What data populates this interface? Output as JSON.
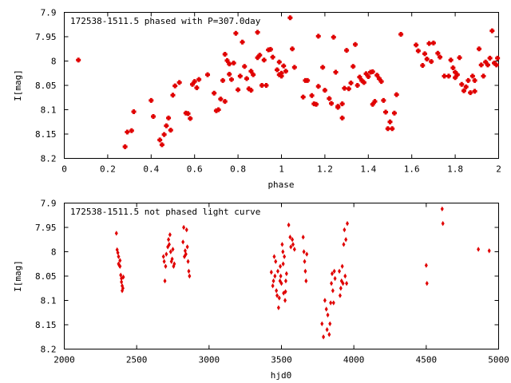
{
  "chart_data": [
    {
      "type": "scatter",
      "title": "172538-1511.5 phased with P=307.0day",
      "xlabel": "phase",
      "ylabel": "I[mag]",
      "xlim": [
        0,
        2
      ],
      "ylim": [
        8.2,
        7.9
      ],
      "y_inverted": true,
      "grid": false,
      "xticks": [
        0,
        0.2,
        0.4,
        0.6,
        0.8,
        1,
        1.2,
        1.4,
        1.6,
        1.8,
        2
      ],
      "xtick_labels": [
        "0",
        "0.2",
        "0.4",
        "0.6",
        "0.8",
        "1",
        "1.2",
        "1.4",
        "1.6",
        "1.8",
        "2"
      ],
      "yticks": [
        7.9,
        7.95,
        8.0,
        8.05,
        8.1,
        8.15,
        8.2
      ],
      "ytick_labels": [
        "7.9",
        "7.95",
        "8",
        "8.05",
        "8.1",
        "8.15",
        "8.2"
      ],
      "color": "#e00000",
      "marker": "cross",
      "points": [
        [
          0.065,
          7.998
        ],
        [
          0.28,
          8.176
        ],
        [
          0.29,
          8.146
        ],
        [
          0.31,
          8.143
        ],
        [
          0.32,
          8.104
        ],
        [
          0.4,
          8.081
        ],
        [
          0.41,
          8.114
        ],
        [
          0.44,
          8.162
        ],
        [
          0.45,
          8.172
        ],
        [
          0.46,
          8.151
        ],
        [
          0.47,
          8.133
        ],
        [
          0.48,
          8.117
        ],
        [
          0.49,
          8.142
        ],
        [
          0.5,
          8.07
        ],
        [
          0.51,
          8.051
        ],
        [
          0.53,
          8.044
        ],
        [
          0.56,
          8.107
        ],
        [
          0.57,
          8.108
        ],
        [
          0.58,
          8.118
        ],
        [
          0.59,
          8.048
        ],
        [
          0.6,
          8.042
        ],
        [
          0.61,
          8.055
        ],
        [
          0.62,
          8.038
        ],
        [
          0.66,
          8.028
        ],
        [
          0.69,
          8.066
        ],
        [
          0.7,
          8.102
        ],
        [
          0.71,
          8.1
        ],
        [
          0.72,
          8.078
        ],
        [
          0.73,
          8.04
        ],
        [
          0.74,
          8.083
        ],
        [
          0.74,
          7.986
        ],
        [
          0.75,
          7.999
        ],
        [
          0.76,
          8.006
        ],
        [
          0.76,
          8.027
        ],
        [
          0.77,
          8.038
        ],
        [
          0.78,
          8.004
        ],
        [
          0.79,
          7.943
        ],
        [
          0.8,
          8.059
        ],
        [
          0.81,
          8.031
        ],
        [
          0.82,
          7.961
        ],
        [
          0.83,
          8.011
        ],
        [
          0.84,
          8.036
        ],
        [
          0.85,
          8.057
        ],
        [
          0.86,
          8.06
        ],
        [
          0.86,
          8.021
        ],
        [
          0.87,
          8.028
        ],
        [
          0.89,
          7.941
        ],
        [
          0.89,
          7.993
        ],
        [
          0.9,
          7.988
        ],
        [
          0.91,
          8.05
        ],
        [
          0.92,
          7.998
        ],
        [
          0.93,
          8.05
        ],
        [
          0.94,
          7.977
        ],
        [
          0.95,
          7.976
        ],
        [
          0.96,
          7.992
        ],
        [
          0.98,
          8.018
        ],
        [
          0.99,
          8.002
        ],
        [
          0.99,
          8.028
        ],
        [
          1.0,
          8.031
        ],
        [
          1.0,
          8.025
        ],
        [
          1.01,
          8.01
        ],
        [
          1.02,
          8.021
        ],
        [
          1.04,
          7.911
        ],
        [
          1.05,
          7.975
        ],
        [
          1.06,
          8.013
        ],
        [
          1.1,
          8.074
        ],
        [
          1.11,
          8.04
        ],
        [
          1.12,
          8.04
        ],
        [
          1.14,
          8.071
        ],
        [
          1.15,
          8.088
        ],
        [
          1.16,
          8.089
        ],
        [
          1.17,
          7.949
        ],
        [
          1.17,
          8.052
        ],
        [
          1.19,
          8.013
        ],
        [
          1.2,
          8.06
        ],
        [
          1.22,
          8.077
        ],
        [
          1.23,
          8.087
        ],
        [
          1.24,
          7.951
        ],
        [
          1.25,
          8.023
        ],
        [
          1.26,
          8.095
        ],
        [
          1.26,
          8.093
        ],
        [
          1.28,
          8.117
        ],
        [
          1.28,
          8.088
        ],
        [
          1.29,
          8.056
        ],
        [
          1.3,
          7.978
        ],
        [
          1.31,
          8.057
        ],
        [
          1.32,
          8.045
        ],
        [
          1.33,
          8.011
        ],
        [
          1.34,
          7.966
        ],
        [
          1.35,
          8.05
        ],
        [
          1.36,
          8.033
        ],
        [
          1.37,
          8.04
        ],
        [
          1.38,
          8.044
        ],
        [
          1.39,
          8.026
        ],
        [
          1.4,
          8.032
        ],
        [
          1.41,
          8.023
        ],
        [
          1.42,
          8.022
        ],
        [
          1.42,
          8.089
        ],
        [
          1.43,
          8.083
        ],
        [
          1.44,
          8.029
        ],
        [
          1.45,
          8.036
        ],
        [
          1.46,
          8.042
        ],
        [
          1.47,
          8.081
        ],
        [
          1.48,
          8.105
        ],
        [
          1.49,
          8.139
        ],
        [
          1.5,
          8.125
        ],
        [
          1.51,
          8.139
        ],
        [
          1.52,
          8.107
        ],
        [
          1.53,
          8.069
        ],
        [
          1.55,
          7.945
        ],
        [
          1.62,
          7.967
        ],
        [
          1.63,
          7.979
        ],
        [
          1.65,
          8.009
        ],
        [
          1.66,
          7.985
        ],
        [
          1.67,
          7.996
        ],
        [
          1.68,
          7.964
        ],
        [
          1.69,
          8.001
        ],
        [
          1.7,
          7.963
        ],
        [
          1.72,
          7.984
        ],
        [
          1.73,
          7.992
        ],
        [
          1.75,
          8.031
        ],
        [
          1.77,
          8.031
        ],
        [
          1.78,
          7.998
        ],
        [
          1.79,
          8.014
        ],
        [
          1.8,
          8.023
        ],
        [
          1.8,
          8.034
        ],
        [
          1.81,
          8.028
        ],
        [
          1.82,
          7.993
        ],
        [
          1.83,
          8.048
        ],
        [
          1.84,
          8.061
        ],
        [
          1.85,
          8.053
        ],
        [
          1.86,
          8.04
        ],
        [
          1.87,
          8.065
        ],
        [
          1.88,
          8.031
        ],
        [
          1.89,
          8.062
        ],
        [
          1.89,
          8.04
        ],
        [
          1.91,
          7.975
        ],
        [
          1.92,
          8.008
        ],
        [
          1.93,
          8.031
        ],
        [
          1.94,
          8.002
        ],
        [
          1.95,
          8.008
        ],
        [
          1.96,
          7.994
        ],
        [
          1.97,
          7.938
        ],
        [
          1.98,
          8.004
        ],
        [
          1.99,
          8.008
        ],
        [
          1.995,
          7.994
        ]
      ]
    },
    {
      "type": "scatter",
      "title": "172538-1511.5 not phased light curve",
      "xlabel": "hjd0",
      "ylabel": "I[mag]",
      "xlim": [
        2000,
        5000
      ],
      "ylim": [
        8.2,
        7.9
      ],
      "y_inverted": true,
      "grid": false,
      "xticks": [
        2000,
        2500,
        3000,
        3500,
        4000,
        4500,
        5000
      ],
      "xtick_labels": [
        "2000",
        "2500",
        "3000",
        "3500",
        "4000",
        "4500",
        "5000"
      ],
      "yticks": [
        7.9,
        7.95,
        8.0,
        8.05,
        8.1,
        8.15,
        8.2
      ],
      "ytick_labels": [
        "7.9",
        "7.95",
        "8",
        "8.05",
        "8.1",
        "8.15",
        "8.2"
      ],
      "color": "#e00000",
      "marker": "diamond",
      "points": [
        [
          2360,
          7.962
        ],
        [
          2365,
          7.996
        ],
        [
          2370,
          8.002
        ],
        [
          2375,
          8.01
        ],
        [
          2375,
          8.025
        ],
        [
          2380,
          8.028
        ],
        [
          2385,
          8.03
        ],
        [
          2385,
          8.018
        ],
        [
          2390,
          8.048
        ],
        [
          2395,
          8.055
        ],
        [
          2395,
          8.062
        ],
        [
          2400,
          8.07
        ],
        [
          2400,
          8.08
        ],
        [
          2405,
          8.075
        ],
        [
          2408,
          8.052
        ],
        [
          2685,
          8.01
        ],
        [
          2690,
          8.02
        ],
        [
          2695,
          8.06
        ],
        [
          2700,
          8.03
        ],
        [
          2705,
          8.005
        ],
        [
          2715,
          7.99
        ],
        [
          2720,
          7.975
        ],
        [
          2725,
          7.985
        ],
        [
          2730,
          7.965
        ],
        [
          2735,
          8.0
        ],
        [
          2740,
          8.02
        ],
        [
          2745,
          8.015
        ],
        [
          2750,
          7.995
        ],
        [
          2755,
          8.03
        ],
        [
          2760,
          8.025
        ],
        [
          2820,
          7.98
        ],
        [
          2825,
          7.95
        ],
        [
          2830,
          8.01
        ],
        [
          2835,
          7.998
        ],
        [
          2840,
          8.005
        ],
        [
          2845,
          7.955
        ],
        [
          2850,
          7.99
        ],
        [
          2855,
          8.02
        ],
        [
          2860,
          8.04
        ],
        [
          2865,
          8.05
        ],
        [
          3430,
          8.042
        ],
        [
          3440,
          8.07
        ],
        [
          3445,
          8.06
        ],
        [
          3450,
          8.01
        ],
        [
          3455,
          8.05
        ],
        [
          3460,
          8.02
        ],
        [
          3465,
          8.08
        ],
        [
          3470,
          8.09
        ],
        [
          3475,
          8.04
        ],
        [
          3480,
          8.115
        ],
        [
          3485,
          8.095
        ],
        [
          3490,
          8.06
        ],
        [
          3492,
          8.03
        ],
        [
          3495,
          8.05
        ],
        [
          3500,
          8.065
        ],
        [
          3505,
          7.985
        ],
        [
          3510,
          8.0
        ],
        [
          3512,
          8.025
        ],
        [
          3515,
          8.085
        ],
        [
          3520,
          8.01
        ],
        [
          3525,
          8.1
        ],
        [
          3528,
          8.082
        ],
        [
          3530,
          8.06
        ],
        [
          3535,
          8.045
        ],
        [
          3550,
          7.945
        ],
        [
          3560,
          7.97
        ],
        [
          3565,
          7.99
        ],
        [
          3575,
          7.975
        ],
        [
          3580,
          7.985
        ],
        [
          3590,
          7.995
        ],
        [
          3650,
          7.97
        ],
        [
          3655,
          8.0
        ],
        [
          3660,
          8.02
        ],
        [
          3665,
          8.04
        ],
        [
          3670,
          8.06
        ],
        [
          3675,
          8.005
        ],
        [
          3780,
          8.148
        ],
        [
          3790,
          8.175
        ],
        [
          3800,
          8.1
        ],
        [
          3810,
          8.118
        ],
        [
          3815,
          8.16
        ],
        [
          3820,
          8.13
        ],
        [
          3830,
          8.17
        ],
        [
          3835,
          8.148
        ],
        [
          3840,
          8.105
        ],
        [
          3845,
          8.065
        ],
        [
          3850,
          8.045
        ],
        [
          3855,
          8.08
        ],
        [
          3860,
          8.105
        ],
        [
          3865,
          8.04
        ],
        [
          3870,
          8.055
        ],
        [
          3900,
          8.04
        ],
        [
          3905,
          8.09
        ],
        [
          3910,
          8.075
        ],
        [
          3915,
          8.06
        ],
        [
          3920,
          8.03
        ],
        [
          3925,
          8.065
        ],
        [
          3930,
          7.985
        ],
        [
          3935,
          7.955
        ],
        [
          3940,
          8.05
        ],
        [
          3945,
          7.975
        ],
        [
          3950,
          8.065
        ],
        [
          3955,
          7.942
        ],
        [
          4500,
          8.028
        ],
        [
          4505,
          8.065
        ],
        [
          4610,
          7.912
        ],
        [
          4615,
          7.942
        ],
        [
          4860,
          7.995
        ],
        [
          4935,
          7.998
        ]
      ]
    }
  ]
}
